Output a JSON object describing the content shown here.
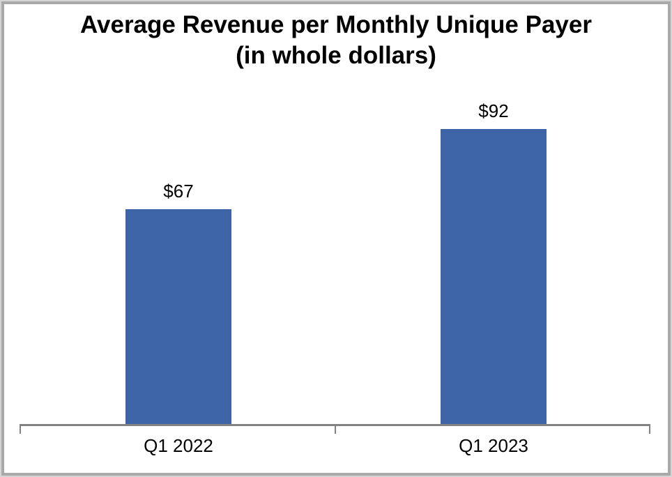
{
  "chart_data": {
    "type": "bar",
    "title_line1": "Average Revenue per Monthly Unique Payer",
    "title_line2": "(in whole dollars)",
    "categories": [
      "Q1 2022",
      "Q1 2023"
    ],
    "values": [
      67,
      92
    ],
    "data_labels": [
      "$67",
      "$92"
    ],
    "xlabel": "",
    "ylabel": "",
    "ylim": [
      0,
      100
    ],
    "gridlines": false,
    "legend": "none",
    "y_axis_visible": false,
    "bar_color": "#3C64A7",
    "axis_color": "#828282",
    "title_color": "#000000",
    "label_color": "#000000",
    "background_color": "#ffffff"
  }
}
